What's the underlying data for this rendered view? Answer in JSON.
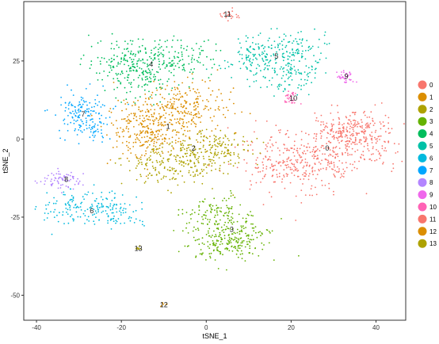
{
  "chart_data": {
    "type": "scatter",
    "xlabel": "tSNE_1",
    "ylabel": "tSNE_2",
    "xlim": [
      -43,
      47
    ],
    "ylim": [
      -58,
      44
    ],
    "x_ticks": [
      -40,
      -20,
      0,
      20,
      40
    ],
    "y_ticks": [
      -50,
      -25,
      0,
      25
    ],
    "grid": false,
    "legend_position": "right",
    "clusters": [
      {
        "name": "0",
        "color": "#F8766D",
        "cx": 30,
        "cy": -4,
        "label_x": 28.5,
        "label_y": -3
      },
      {
        "name": "1",
        "color": "#DB8E00",
        "cx": -9,
        "cy": 4,
        "label_x": -9,
        "label_y": 4
      },
      {
        "name": "2",
        "color": "#AEA200",
        "cx": -4,
        "cy": -6,
        "label_x": -3,
        "label_y": -3
      },
      {
        "name": "3",
        "color": "#64B200",
        "cx": 6,
        "cy": -29,
        "label_x": 6,
        "label_y": -29
      },
      {
        "name": "4",
        "color": "#00BD5C",
        "cx": -13,
        "cy": 24,
        "label_x": -13,
        "label_y": 24
      },
      {
        "name": "5",
        "color": "#00C1A7",
        "cx": 17,
        "cy": 27,
        "label_x": 16.5,
        "label_y": 26.5
      },
      {
        "name": "6",
        "color": "#00BADE",
        "cx": -28,
        "cy": -23,
        "label_x": -27,
        "label_y": -23
      },
      {
        "name": "7",
        "color": "#00A6FF",
        "cx": -29,
        "cy": 8,
        "label_x": -29,
        "label_y": 8
      },
      {
        "name": "8",
        "color": "#B385FF",
        "cx": -33,
        "cy": -14,
        "label_x": -33,
        "label_y": -13
      },
      {
        "name": "9",
        "color": "#EF67EB",
        "cx": 33,
        "cy": 20,
        "label_x": 33,
        "label_y": 20
      },
      {
        "name": "10",
        "color": "#FF63B6",
        "cx": 20,
        "cy": 13,
        "label_x": 20.5,
        "label_y": 13
      },
      {
        "name": "11",
        "color": "#F8766D",
        "cx": 5,
        "cy": 40,
        "label_x": 5,
        "label_y": 40
      },
      {
        "name": "12",
        "color": "#DB8E00",
        "cx": -10,
        "cy": -53,
        "label_x": -10,
        "label_y": -53
      },
      {
        "name": "13",
        "color": "#AEA200",
        "cx": -16,
        "cy": -35,
        "label_x": -16,
        "label_y": -35
      }
    ],
    "legend": [
      {
        "label": "0",
        "color": "#F8766D"
      },
      {
        "label": "1",
        "color": "#DB8E00"
      },
      {
        "label": "2",
        "color": "#AEA200"
      },
      {
        "label": "3",
        "color": "#64B200"
      },
      {
        "label": "4",
        "color": "#00BD5C"
      },
      {
        "label": "5",
        "color": "#00C1A7"
      },
      {
        "label": "6",
        "color": "#00BADE"
      },
      {
        "label": "7",
        "color": "#00A6FF"
      },
      {
        "label": "8",
        "color": "#B385FF"
      },
      {
        "label": "9",
        "color": "#EF67EB"
      },
      {
        "label": "10",
        "color": "#FF63B6"
      },
      {
        "label": "11",
        "color": "#F8766D"
      },
      {
        "label": "12",
        "color": "#DB8E00"
      },
      {
        "label": "13",
        "color": "#AEA200"
      }
    ]
  }
}
